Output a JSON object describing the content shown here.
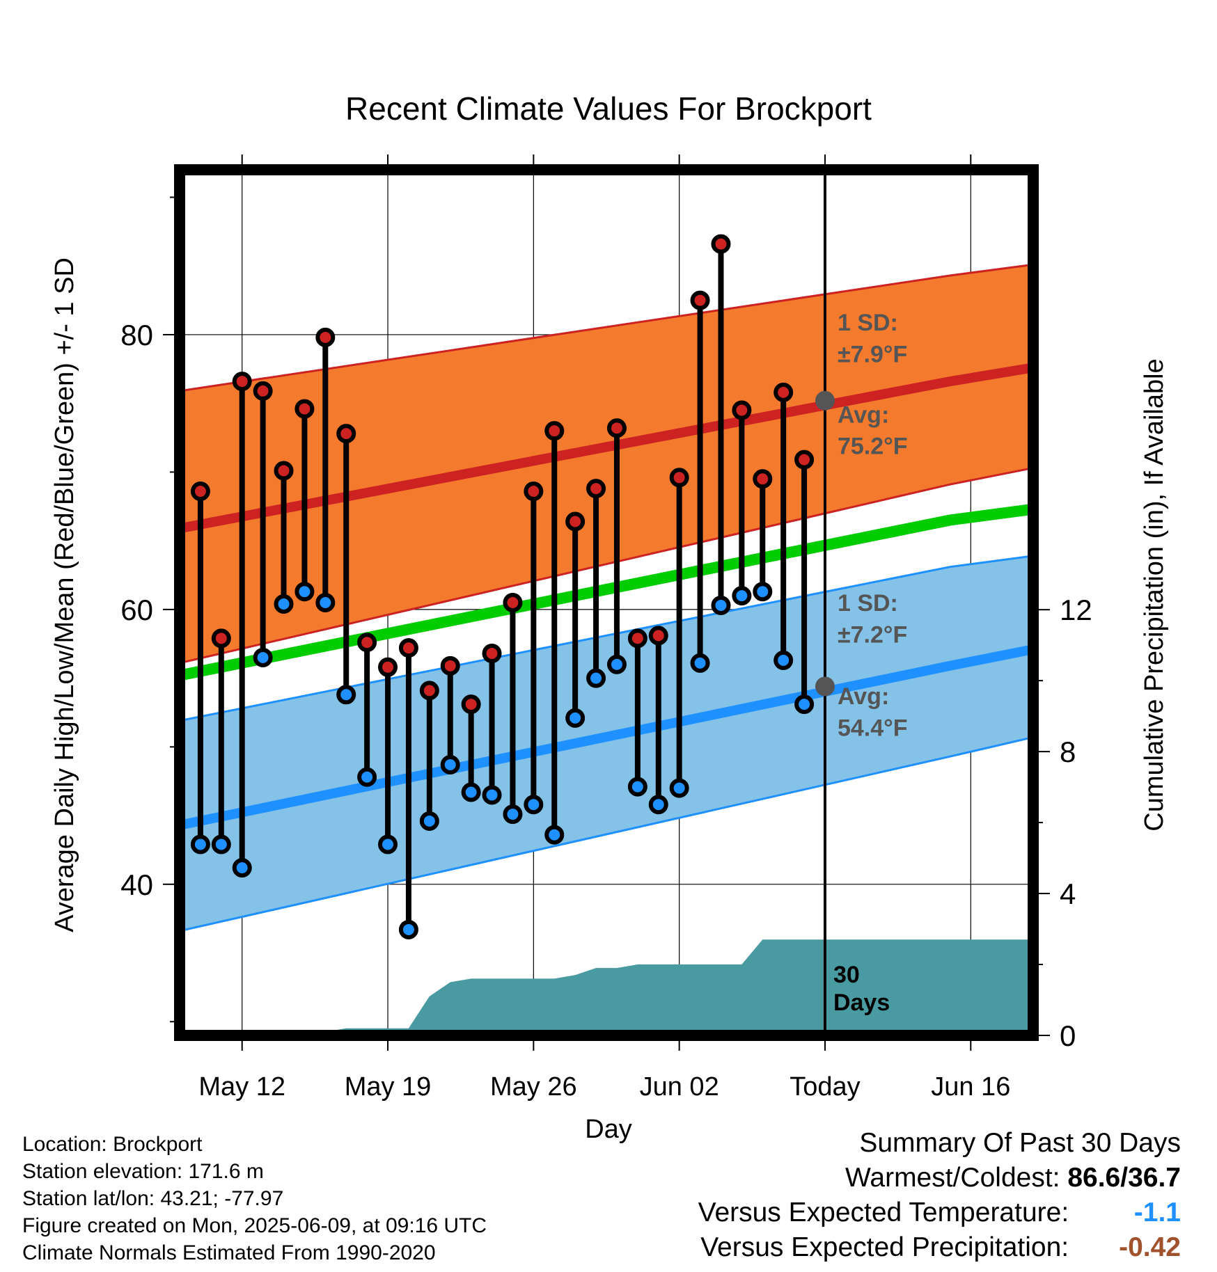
{
  "chart_data": {
    "type": "line",
    "title": "Recent Climate Values For Brockport",
    "xlabel": "Day",
    "ylabel": "Average Daily High/Low/Mean (Red/Blue/Green) +/- 1 SD",
    "y2label": "Cumulative Precipitation (in), If Available",
    "x_tick_labels": [
      "May 12",
      "May 19",
      "May 26",
      "Jun 02",
      "Today",
      "Jun 16"
    ],
    "y_ticks": [
      40,
      60,
      80
    ],
    "y2_ticks": [
      0,
      4,
      8,
      12
    ],
    "ylim": [
      29,
      92
    ],
    "y2lim": [
      0,
      24.4
    ],
    "grid": true,
    "today_label": "30 Days",
    "colors": {
      "high_band": "#f47a2d",
      "high_line": "#cc2222",
      "low_band": "#84c2e8",
      "low_line": "#1e90ff",
      "mean_line": "#00cc00",
      "precip": "#4a9aa1",
      "marker_high": "#cc2222",
      "marker_low": "#1e90ff",
      "annotation": "#555555"
    },
    "normals": {
      "x": [
        "May 09",
        "Jun 15",
        "Jun 19"
      ],
      "high_avg": [
        65.9,
        76.6,
        77.6
      ],
      "high_sd_upper": [
        75.9,
        84.3,
        85.1
      ],
      "high_sd_lower": [
        56.1,
        69.1,
        70.3
      ],
      "low_avg": [
        44.3,
        55.9,
        57.1
      ],
      "low_sd_upper": [
        51.9,
        63.1,
        63.9
      ],
      "low_sd_lower": [
        36.6,
        49.3,
        50.7
      ],
      "mean": [
        55.2,
        66.5,
        67.3
      ]
    },
    "annotations": {
      "high_sd": "1 SD:",
      "high_sd_value": "±7.9°F",
      "high_avg_label": "Avg:",
      "high_avg_value": "75.2°F",
      "low_sd": "1 SD:",
      "low_sd_value": "±7.2°F",
      "low_avg_label": "Avg:",
      "low_avg_value": "54.4°F"
    },
    "series": [
      {
        "name": "High",
        "x": [
          "May 10",
          "May 11",
          "May 12",
          "May 13",
          "May 14",
          "May 15",
          "May 16",
          "May 17",
          "May 18",
          "May 19",
          "May 20",
          "May 21",
          "May 22",
          "May 23",
          "May 24",
          "May 25",
          "May 26",
          "May 27",
          "May 28",
          "May 29",
          "May 30",
          "May 31",
          "Jun 01",
          "Jun 02",
          "Jun 03",
          "Jun 04",
          "Jun 05",
          "Jun 06",
          "Jun 07",
          "Jun 08"
        ],
        "values": [
          68.6,
          57.9,
          76.6,
          75.9,
          70.1,
          74.6,
          79.8,
          72.8,
          57.6,
          55.8,
          57.2,
          54.1,
          55.9,
          53.1,
          56.8,
          60.5,
          68.6,
          73.0,
          66.4,
          68.8,
          73.2,
          57.9,
          58.1,
          69.6,
          82.5,
          86.6,
          74.5,
          69.5,
          75.8,
          70.9
        ]
      },
      {
        "name": "Low",
        "x": [
          "May 10",
          "May 11",
          "May 12",
          "May 13",
          "May 14",
          "May 15",
          "May 16",
          "May 17",
          "May 18",
          "May 19",
          "May 20",
          "May 21",
          "May 22",
          "May 23",
          "May 24",
          "May 25",
          "May 26",
          "May 27",
          "May 28",
          "May 29",
          "May 30",
          "May 31",
          "Jun 01",
          "Jun 02",
          "Jun 03",
          "Jun 04",
          "Jun 05",
          "Jun 06",
          "Jun 07",
          "Jun 08"
        ],
        "values": [
          42.9,
          42.9,
          41.2,
          56.5,
          60.4,
          61.3,
          60.5,
          53.8,
          47.8,
          42.9,
          36.7,
          44.6,
          48.7,
          46.7,
          46.5,
          45.1,
          45.8,
          43.6,
          52.1,
          55.0,
          56.0,
          47.1,
          45.8,
          47.0,
          56.1,
          60.3,
          61.0,
          61.3,
          56.3,
          53.1
        ]
      },
      {
        "name": "Cumulative Precipitation",
        "x": [
          "May 09",
          "May 15",
          "May 16",
          "May 17",
          "May 18",
          "May 19",
          "May 20",
          "May 21",
          "May 22",
          "May 23",
          "May 24",
          "May 25",
          "May 26",
          "May 27",
          "May 28",
          "May 29",
          "May 30",
          "May 31",
          "Jun 01",
          "Jun 02",
          "Jun 03",
          "Jun 04",
          "Jun 05",
          "Jun 06",
          "Jun 07",
          "Jun 08",
          "Jun 09",
          "Jun 19"
        ],
        "values": [
          0,
          0,
          0.1,
          0.2,
          0.2,
          0.2,
          0.2,
          1.1,
          1.5,
          1.6,
          1.6,
          1.6,
          1.6,
          1.6,
          1.7,
          1.9,
          1.9,
          2.0,
          2.0,
          2.0,
          2.0,
          2.0,
          2.0,
          2.7,
          2.7,
          2.7,
          2.7,
          2.7
        ]
      }
    ]
  },
  "footer": {
    "location": "Location: Brockport",
    "elevation": "Station elevation: 171.6 m",
    "latlon": "Station lat/lon: 43.21; -77.97",
    "created": "Figure created on Mon, 2025-06-09, at 09:16 UTC",
    "normals": "Climate Normals Estimated From 1990-2020"
  },
  "summary": {
    "title": "Summary Of Past 30 Days",
    "warm_cold_label": "Warmest/Coldest:",
    "warm_cold_value": "86.6/36.7",
    "temp_label": "Versus Expected Temperature:",
    "temp_value": "-1.1",
    "temp_color": "#1e90ff",
    "precip_label": "Versus Expected Precipitation:",
    "precip_value": "-0.42",
    "precip_color": "#a0522d"
  }
}
